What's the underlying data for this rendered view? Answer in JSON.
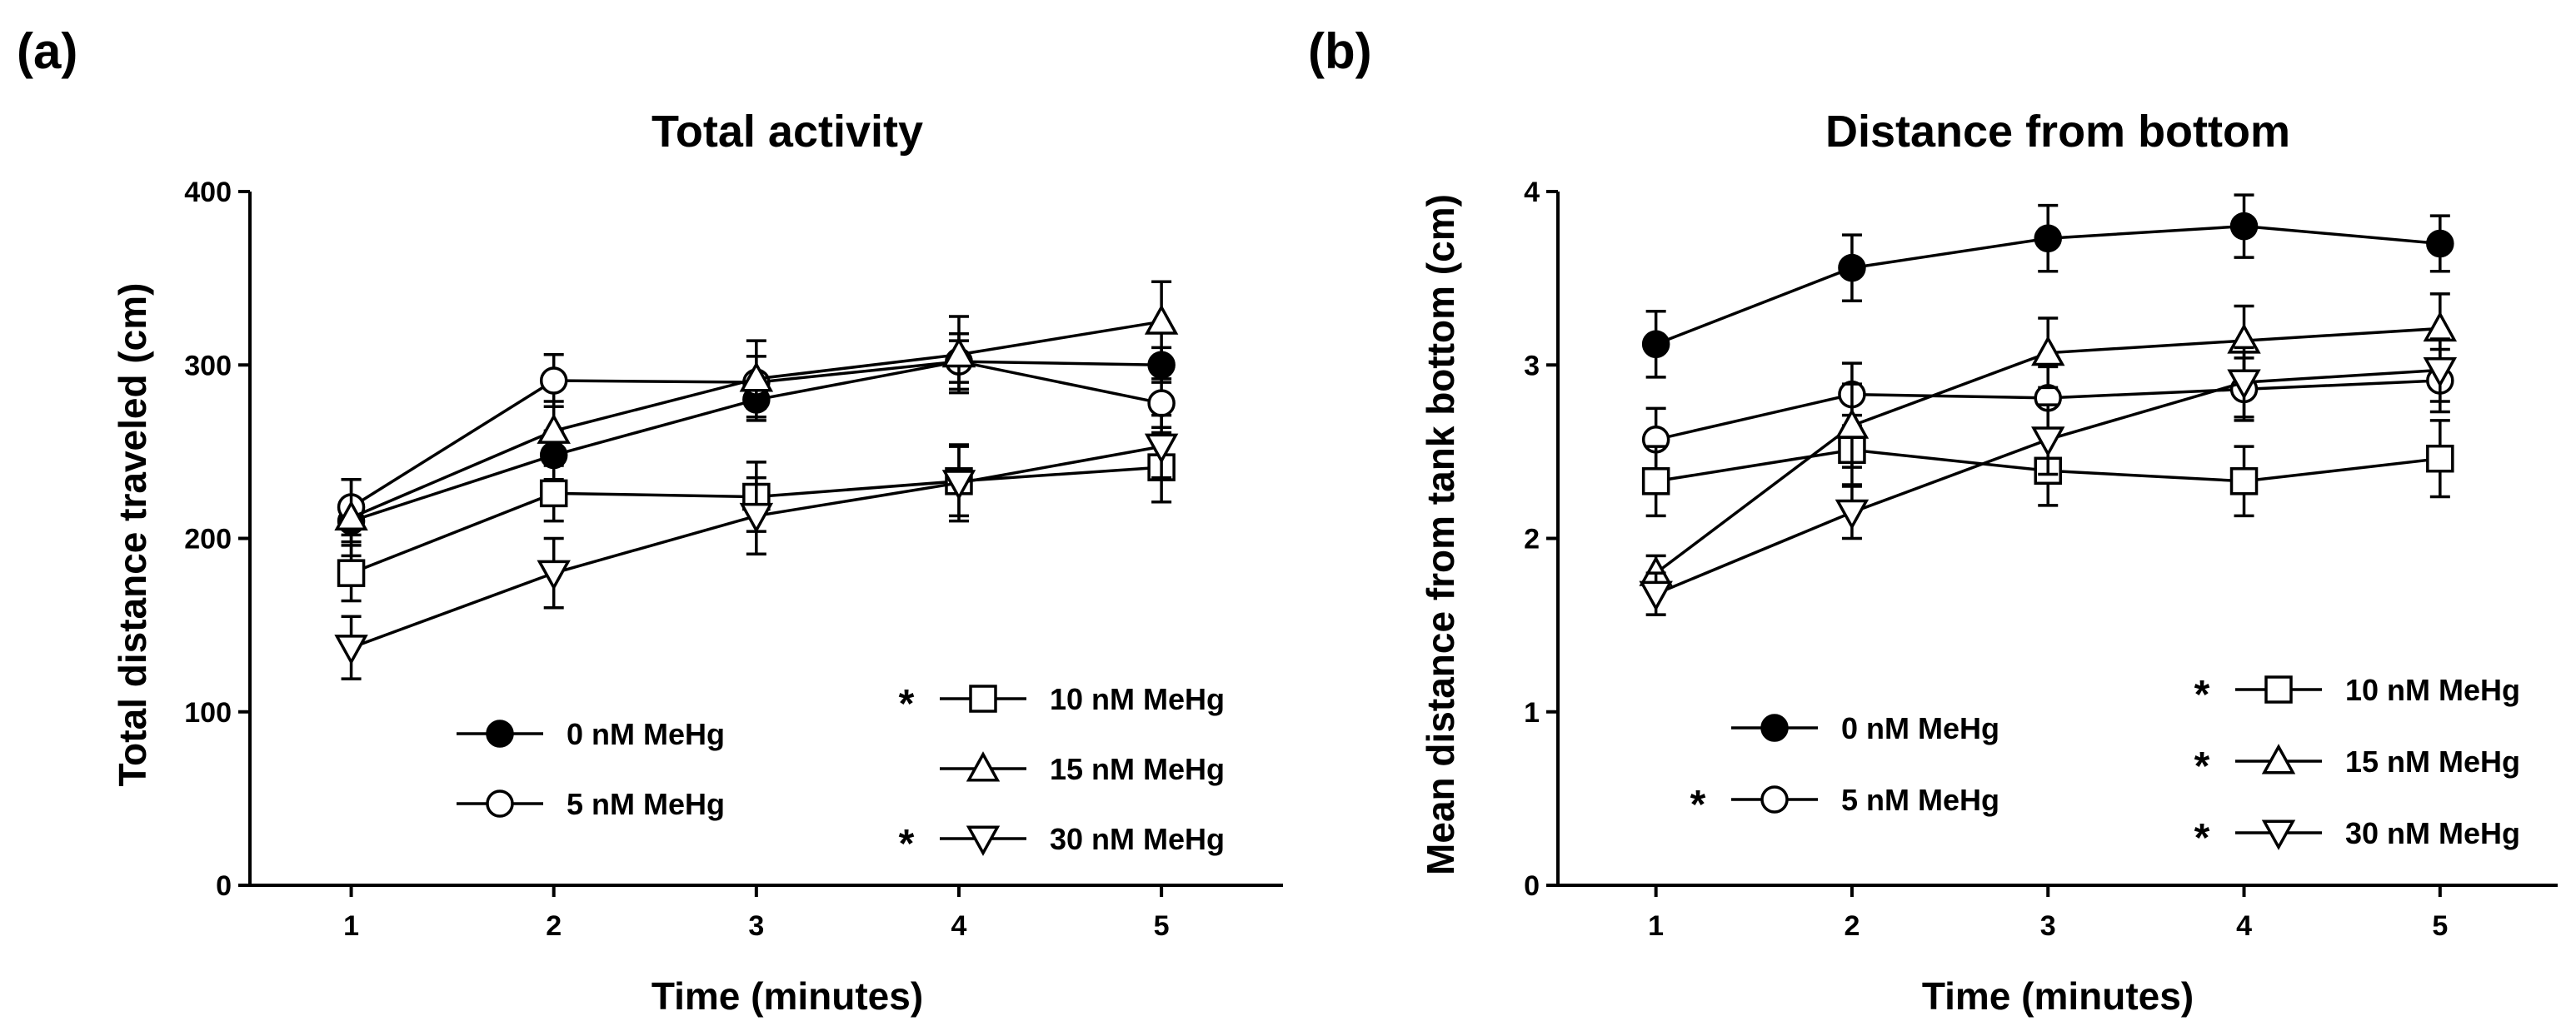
{
  "chart_data": [
    {
      "panel": "(a)",
      "type": "line",
      "title": "Total activity",
      "xlabel": "Time (minutes)",
      "ylabel": "Total distance traveled (cm)",
      "xlim": [
        0.5,
        5.6
      ],
      "ylim": [
        0,
        400
      ],
      "xticks": [
        1,
        2,
        3,
        4,
        5
      ],
      "yticks": [
        0,
        100,
        200,
        300,
        400
      ],
      "legend_cols": [
        [
          {
            "series": 0,
            "star": ""
          },
          {
            "series": 1,
            "star": ""
          }
        ],
        [
          {
            "series": 2,
            "star": "*"
          },
          {
            "series": 3,
            "star": ""
          },
          {
            "series": 4,
            "star": "*"
          }
        ]
      ],
      "series": [
        {
          "name": "0 nM MeHg",
          "marker": "filled-circle",
          "x": [
            1,
            2,
            3,
            4,
            5
          ],
          "y": [
            210,
            248,
            280,
            302,
            300
          ],
          "err": [
            12,
            14,
            12,
            12,
            10
          ]
        },
        {
          "name": "5 nM MeHg",
          "marker": "open-circle",
          "x": [
            1,
            2,
            3,
            4,
            5
          ],
          "y": [
            218,
            291,
            290,
            302,
            278
          ],
          "err": [
            16,
            15,
            15,
            16,
            14
          ]
        },
        {
          "name": "10 nM MeHg",
          "marker": "open-square",
          "x": [
            1,
            2,
            3,
            4,
            5
          ],
          "y": [
            180,
            226,
            224,
            233,
            241
          ],
          "err": [
            16,
            16,
            20,
            20,
            20
          ]
        },
        {
          "name": "15 nM MeHg",
          "marker": "open-triangle-up",
          "x": [
            1,
            2,
            3,
            4,
            5
          ],
          "y": [
            212,
            262,
            292,
            306,
            325
          ],
          "err": [
            22,
            17,
            22,
            22,
            23
          ]
        },
        {
          "name": "30 nM MeHg",
          "marker": "open-triangle-down",
          "x": [
            1,
            2,
            3,
            4,
            5
          ],
          "y": [
            137,
            180,
            213,
            232,
            253
          ],
          "err": [
            18,
            20,
            22,
            22,
            18
          ]
        }
      ]
    },
    {
      "panel": "(b)",
      "type": "line",
      "title": "Distance from bottom",
      "xlabel": "Time (minutes)",
      "ylabel": "Mean distance from tank bottom (cm)",
      "xlim": [
        0.5,
        5.6
      ],
      "ylim": [
        0,
        4
      ],
      "xticks": [
        1,
        2,
        3,
        4,
        5
      ],
      "yticks": [
        0,
        1,
        2,
        3,
        4
      ],
      "legend_cols": [
        [
          {
            "series": 0,
            "star": ""
          },
          {
            "series": 1,
            "star": "*"
          }
        ],
        [
          {
            "series": 2,
            "star": "*"
          },
          {
            "series": 3,
            "star": "*"
          },
          {
            "series": 4,
            "star": "*"
          }
        ]
      ],
      "series": [
        {
          "name": "0 nM MeHg",
          "marker": "filled-circle",
          "x": [
            1,
            2,
            3,
            4,
            5
          ],
          "y": [
            3.12,
            3.56,
            3.73,
            3.8,
            3.7
          ],
          "err": [
            0.19,
            0.19,
            0.19,
            0.18,
            0.16
          ]
        },
        {
          "name": "5 nM MeHg",
          "marker": "open-circle",
          "x": [
            1,
            2,
            3,
            4,
            5
          ],
          "y": [
            2.57,
            2.83,
            2.81,
            2.86,
            2.91
          ],
          "err": [
            0.18,
            0.18,
            0.18,
            0.18,
            0.18
          ]
        },
        {
          "name": "10 nM MeHg",
          "marker": "open-square",
          "x": [
            1,
            2,
            3,
            4,
            5
          ],
          "y": [
            2.33,
            2.51,
            2.39,
            2.33,
            2.46
          ],
          "err": [
            0.2,
            0.2,
            0.2,
            0.2,
            0.22
          ]
        },
        {
          "name": "15 nM MeHg",
          "marker": "open-triangle-up",
          "x": [
            1,
            2,
            3,
            4,
            5
          ],
          "y": [
            1.8,
            2.65,
            3.07,
            3.14,
            3.21
          ],
          "err": [
            0.1,
            0.24,
            0.2,
            0.2,
            0.2
          ]
        },
        {
          "name": "30 nM MeHg",
          "marker": "open-triangle-down",
          "x": [
            1,
            2,
            3,
            4,
            5
          ],
          "y": [
            1.68,
            2.15,
            2.57,
            2.9,
            2.97
          ],
          "err": [
            0.12,
            0.15,
            0.2,
            0.2,
            0.18
          ]
        }
      ]
    }
  ]
}
